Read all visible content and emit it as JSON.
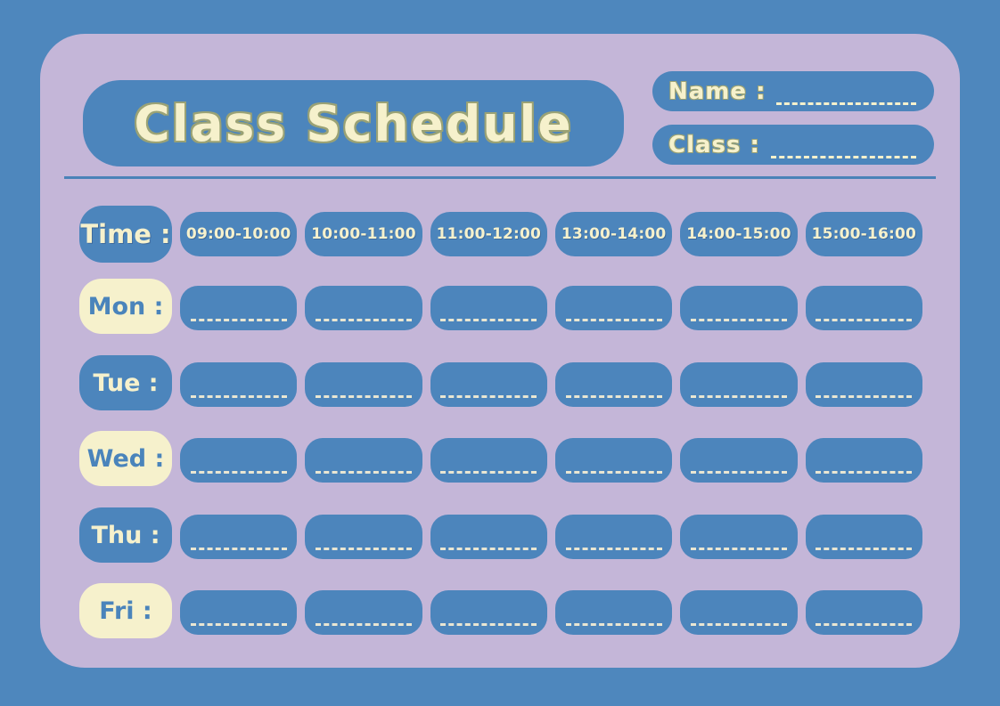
{
  "colors": {
    "outer_bg": "#4E87BD",
    "panel_bg": "#C4B6D8",
    "pill_blue": "#4C85BC",
    "cream": "#F6F1CC",
    "label_text_blue": "#4A84BB",
    "title_edge": "#9AA275",
    "divider": "#4A82B8",
    "cell_dash": "#E9E6D2"
  },
  "header": {
    "title": "Class Schedule",
    "name_label": "Name :",
    "class_label": "Class :"
  },
  "schedule": {
    "time_label": "Time :",
    "time_slots": [
      "09:00-10:00",
      "10:00-11:00",
      "11:00-12:00",
      "13:00-14:00",
      "14:00-15:00",
      "15:00-16:00"
    ],
    "days": [
      {
        "label": "Mon :",
        "variant": "cream"
      },
      {
        "label": "Tue :",
        "variant": "blue"
      },
      {
        "label": "Wed :",
        "variant": "cream"
      },
      {
        "label": "Thu :",
        "variant": "blue"
      },
      {
        "label": "Fri :",
        "variant": "cream"
      }
    ]
  }
}
